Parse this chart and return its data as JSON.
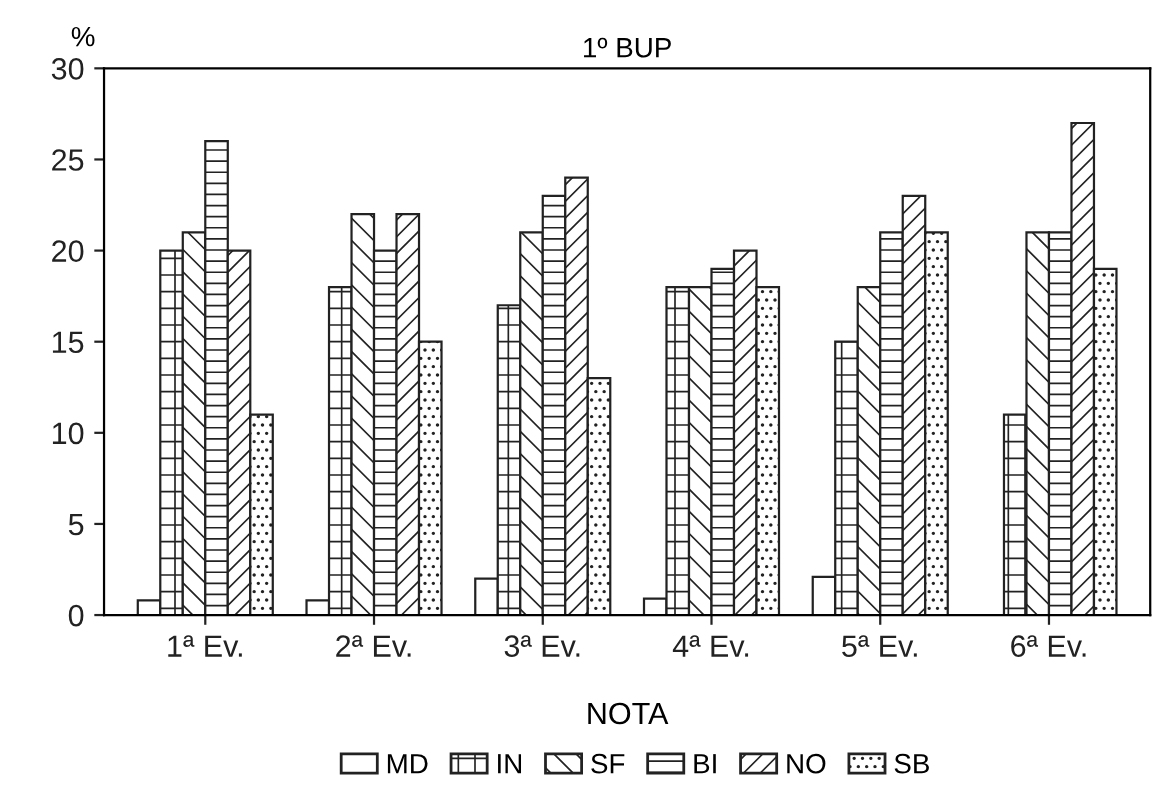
{
  "chart_data": {
    "type": "bar",
    "title": "1º BUP",
    "ylabel": "%",
    "xlabel": "NOTA",
    "categories": [
      "1ª Ev.",
      "2ª Ev.",
      "3ª Ev.",
      "4ª Ev.",
      "5ª Ev.",
      "6ª Ev."
    ],
    "series": [
      {
        "name": "MD",
        "color": "#ffffff",
        "values": [
          0.8,
          0.8,
          2,
          0.9,
          2.1,
          null
        ]
      },
      {
        "name": "IN",
        "color": "#222222",
        "values": [
          20,
          18,
          17,
          18,
          15,
          11
        ]
      },
      {
        "name": "SF",
        "color": "#222222",
        "values": [
          21,
          22,
          21,
          18,
          18,
          21
        ]
      },
      {
        "name": "BI",
        "color": "#222222",
        "values": [
          26,
          20,
          23,
          19,
          21,
          21
        ]
      },
      {
        "name": "NO",
        "color": "#222222",
        "values": [
          20,
          22,
          24,
          20,
          23,
          27
        ]
      },
      {
        "name": "SB",
        "color": "#222222",
        "values": [
          11,
          15,
          13,
          18,
          21,
          19
        ]
      }
    ],
    "ylim": [
      0,
      30
    ],
    "yticks": [
      0,
      5,
      10,
      15,
      20,
      25,
      30
    ],
    "grid": false,
    "legend": "bottom"
  }
}
